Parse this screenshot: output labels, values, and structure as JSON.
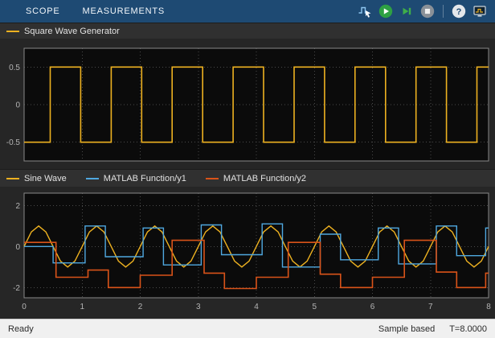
{
  "toolbar": {
    "tabs": [
      {
        "label": "SCOPE"
      },
      {
        "label": "MEASUREMENTS"
      }
    ],
    "icons": [
      {
        "name": "highlight-simulink-block-icon"
      },
      {
        "name": "run-icon"
      },
      {
        "name": "step-forward-icon"
      },
      {
        "name": "stop-icon"
      },
      {
        "name": "help-icon",
        "glyph": "?"
      },
      {
        "name": "scope-window-icon"
      }
    ]
  },
  "legend1": {
    "items": [
      {
        "label": "Square Wave Generator",
        "color": "#EDB120"
      }
    ]
  },
  "legend2": {
    "items": [
      {
        "label": "Sine Wave",
        "color": "#EDB120"
      },
      {
        "label": "MATLAB Function/y1",
        "color": "#4FA8E0"
      },
      {
        "label": "MATLAB Function/y2",
        "color": "#D95319"
      }
    ]
  },
  "status": {
    "left": "Ready",
    "sample_mode": "Sample based",
    "time": "T=8.0000"
  },
  "colors": {
    "toolbar_bg": "#1e4a73",
    "figure_bg": "#262626",
    "legend_bg": "#303030",
    "plot_bg": "#0b0b0b",
    "grid": "#4a4a4a",
    "axis": "#8a8a8a",
    "tick_text": "#b4b4b4",
    "status_bg": "#f0f0f0",
    "yellow": "#EDB120",
    "blue": "#4FA8E0",
    "orange": "#D95319",
    "run_green": "#2ea043"
  },
  "chart_data": [
    {
      "type": "line",
      "title": "Square Wave Generator",
      "xlabel": "",
      "ylabel": "",
      "xlim": [
        0,
        8
      ],
      "ylim": [
        -0.75,
        0.75
      ],
      "xticks": [
        0,
        1,
        2,
        3,
        4,
        5,
        6,
        7,
        8
      ],
      "yticks": [
        0.5,
        0,
        -0.5
      ],
      "ytick_labels": [
        "0.5",
        "0",
        "-0.5"
      ],
      "grid": true,
      "legend_position": "top-strip",
      "series": [
        {
          "name": "Square Wave Generator",
          "color": "#EDB120",
          "style": "step",
          "width": 1.6,
          "steps": [
            [
              0,
              -0.5
            ],
            [
              0.45,
              0.5
            ],
            [
              0.975,
              -0.5
            ],
            [
              1.5,
              0.5
            ],
            [
              2.025,
              -0.5
            ],
            [
              2.55,
              0.5
            ],
            [
              3.075,
              -0.5
            ],
            [
              3.6,
              0.5
            ],
            [
              4.125,
              -0.5
            ],
            [
              4.65,
              0.5
            ],
            [
              5.175,
              -0.5
            ],
            [
              5.7,
              0.5
            ],
            [
              6.225,
              -0.5
            ],
            [
              6.75,
              0.5
            ],
            [
              7.275,
              -0.5
            ],
            [
              7.8,
              0.5
            ]
          ]
        }
      ]
    },
    {
      "type": "line",
      "title": "",
      "xlabel": "",
      "ylabel": "",
      "xlim": [
        0,
        8
      ],
      "ylim": [
        -2.5,
        2.6
      ],
      "xticks": [
        0,
        1,
        2,
        3,
        4,
        5,
        6,
        7,
        8
      ],
      "xtick_labels": [
        "0",
        "1",
        "2",
        "3",
        "4",
        "5",
        "6",
        "7",
        "8"
      ],
      "yticks": [
        2,
        0,
        -2
      ],
      "ytick_labels": [
        "2",
        "0",
        "-2"
      ],
      "grid": true,
      "legend_position": "top-strip",
      "series": [
        {
          "name": "Sine Wave",
          "color": "#EDB120",
          "style": "sampled",
          "width": 1.4,
          "x0": 0,
          "dx": 0.125,
          "values": [
            0,
            0.71,
            1,
            0.71,
            0,
            -0.71,
            -1,
            -0.71,
            0,
            0.71,
            1,
            0.71,
            0,
            -0.71,
            -1,
            -0.71,
            0,
            0.71,
            1,
            0.71,
            0,
            -0.71,
            -1,
            -0.71,
            0,
            0.71,
            1,
            0.71,
            0,
            -0.71,
            -1,
            -0.71,
            0,
            0.71,
            1,
            0.71,
            0,
            -0.71,
            -1,
            -0.71,
            0,
            0.71,
            1,
            0.71,
            0,
            -0.71,
            -1,
            -0.71,
            0,
            0.71,
            1,
            0.71,
            0,
            -0.71,
            -1,
            -0.71,
            0,
            0.71,
            1,
            0.71,
            0,
            -0.71,
            -1,
            -0.71,
            0
          ]
        },
        {
          "name": "MATLAB Function/y1",
          "color": "#4FA8E0",
          "style": "step",
          "width": 1.4,
          "steps": [
            [
              0,
              0
            ],
            [
              0.5,
              -0.8
            ],
            [
              1.05,
              1.0
            ],
            [
              1.4,
              -0.5
            ],
            [
              2.05,
              0.9
            ],
            [
              2.4,
              -0.9
            ],
            [
              3.05,
              1.05
            ],
            [
              3.4,
              -0.4
            ],
            [
              4.1,
              1.1
            ],
            [
              4.45,
              -1.0
            ],
            [
              5.1,
              0.6
            ],
            [
              5.45,
              -0.65
            ],
            [
              6.1,
              0.9
            ],
            [
              6.45,
              -0.85
            ],
            [
              7.1,
              1.0
            ],
            [
              7.45,
              -0.45
            ],
            [
              7.95,
              0.9
            ]
          ]
        },
        {
          "name": "MATLAB Function/y2",
          "color": "#D95319",
          "style": "step",
          "width": 1.6,
          "steps": [
            [
              0,
              0.2
            ],
            [
              0.55,
              -1.5
            ],
            [
              1.1,
              -1.15
            ],
            [
              1.45,
              -2.0
            ],
            [
              2.0,
              -1.4
            ],
            [
              2.55,
              0.3
            ],
            [
              3.1,
              -1.3
            ],
            [
              3.45,
              -2.05
            ],
            [
              4.0,
              -1.5
            ],
            [
              4.55,
              0.2
            ],
            [
              5.1,
              -1.35
            ],
            [
              5.45,
              -2.0
            ],
            [
              6.0,
              -1.5
            ],
            [
              6.55,
              0.3
            ],
            [
              7.1,
              -1.25
            ],
            [
              7.45,
              -2.0
            ],
            [
              7.95,
              -1.3
            ]
          ]
        }
      ]
    }
  ]
}
